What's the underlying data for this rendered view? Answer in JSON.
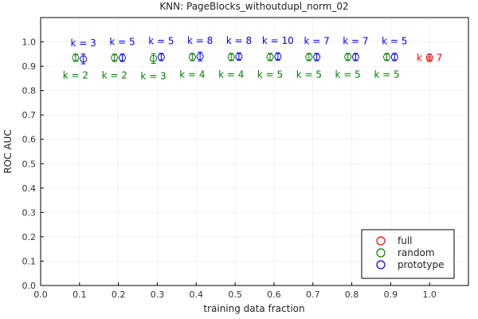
{
  "chart_data": {
    "type": "scatter",
    "title": "KNN: PageBlocks_withoutdupl_norm_02",
    "xlabel": "training data fraction",
    "ylabel": "ROC AUC",
    "xlim": [
      0.0,
      1.1
    ],
    "ylim": [
      0.0,
      1.1
    ],
    "xticks": [
      "0.0",
      "0.1",
      "0.2",
      "0.3",
      "0.4",
      "0.5",
      "0.6",
      "0.7",
      "0.8",
      "0.9",
      "1.0"
    ],
    "yticks": [
      "0.0",
      "0.1",
      "0.2",
      "0.3",
      "0.4",
      "0.5",
      "0.6",
      "0.7",
      "0.8",
      "0.9",
      "1.0"
    ],
    "grid": true,
    "legend_position": "bottom-right",
    "series": [
      {
        "name": "full",
        "color": "#ff0000",
        "points": [
          {
            "x": 1.0,
            "y": 0.935,
            "err": 0.015,
            "label": "k = 7",
            "label_pos": "same"
          }
        ]
      },
      {
        "name": "random",
        "color": "#008000",
        "points": [
          {
            "x": 0.09,
            "y": 0.935,
            "err": 0.015,
            "label": "k = 2",
            "label_pos": "below"
          },
          {
            "x": 0.19,
            "y": 0.935,
            "err": 0.015,
            "label": "k = 2",
            "label_pos": "below"
          },
          {
            "x": 0.29,
            "y": 0.932,
            "err": 0.02,
            "label": "k = 3",
            "label_pos": "below"
          },
          {
            "x": 0.39,
            "y": 0.938,
            "err": 0.015,
            "label": "k = 4",
            "label_pos": "below"
          },
          {
            "x": 0.49,
            "y": 0.938,
            "err": 0.015,
            "label": "k = 4",
            "label_pos": "below"
          },
          {
            "x": 0.59,
            "y": 0.938,
            "err": 0.015,
            "label": "k = 5",
            "label_pos": "below"
          },
          {
            "x": 0.69,
            "y": 0.938,
            "err": 0.015,
            "label": "k = 5",
            "label_pos": "below"
          },
          {
            "x": 0.79,
            "y": 0.938,
            "err": 0.015,
            "label": "k = 5",
            "label_pos": "below"
          },
          {
            "x": 0.89,
            "y": 0.938,
            "err": 0.015,
            "label": "k = 5",
            "label_pos": "below"
          }
        ]
      },
      {
        "name": "prototype",
        "color": "#0000ff",
        "points": [
          {
            "x": 0.11,
            "y": 0.93,
            "err": 0.02,
            "label": "k = 3",
            "label_pos": "above"
          },
          {
            "x": 0.21,
            "y": 0.935,
            "err": 0.015,
            "label": "k = 5",
            "label_pos": "above"
          },
          {
            "x": 0.31,
            "y": 0.938,
            "err": 0.015,
            "label": "k = 5",
            "label_pos": "above"
          },
          {
            "x": 0.41,
            "y": 0.94,
            "err": 0.018,
            "label": "k = 8",
            "label_pos": "above"
          },
          {
            "x": 0.51,
            "y": 0.94,
            "err": 0.015,
            "label": "k = 8",
            "label_pos": "above"
          },
          {
            "x": 0.61,
            "y": 0.94,
            "err": 0.015,
            "label": "k = 10",
            "label_pos": "above"
          },
          {
            "x": 0.71,
            "y": 0.938,
            "err": 0.015,
            "label": "k = 7",
            "label_pos": "above"
          },
          {
            "x": 0.81,
            "y": 0.938,
            "err": 0.015,
            "label": "k = 7",
            "label_pos": "above"
          },
          {
            "x": 0.91,
            "y": 0.938,
            "err": 0.015,
            "label": "k = 5",
            "label_pos": "above"
          }
        ]
      }
    ]
  }
}
